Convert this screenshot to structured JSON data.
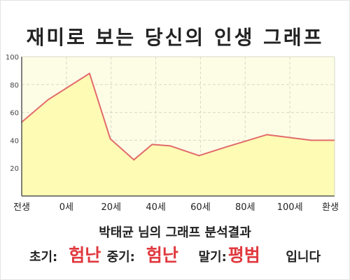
{
  "colors": {
    "accent": "#e0393e",
    "plot_background": "#fdfde6",
    "fill": "#fdfbb4",
    "line": "#e26b6b",
    "axis": "#555555",
    "grid": "#d8d8c6"
  },
  "chart_data": {
    "type": "area",
    "title": "재미로 보는 당신의 인생 그래프",
    "xlabel": "",
    "ylabel": "",
    "x_ticks": [
      "전생",
      "0세",
      "20세",
      "40세",
      "60세",
      "80세",
      "100세",
      "환생"
    ],
    "y_ticks": [
      "20",
      "40",
      "60",
      "80",
      "100"
    ],
    "ylim": [
      0,
      100
    ],
    "xlim": [
      -10,
      110
    ],
    "grid": true,
    "legend": "none",
    "series": [
      {
        "x": [
          -10,
          0,
          16,
          24,
          33,
          40,
          47,
          58,
          68,
          84,
          101,
          110
        ],
        "values": [
          53,
          69,
          88,
          41,
          26,
          37,
          36,
          29,
          35,
          44,
          40,
          40
        ]
      }
    ]
  },
  "summary": {
    "text": "박태균 님의 그래프 분석결과"
  },
  "result": {
    "early_label": "초기:",
    "early_value": "험난",
    "middle_label": "중기:",
    "middle_value": "험난",
    "late_label": "말기:",
    "late_value": "평범",
    "ending": "입니다"
  }
}
